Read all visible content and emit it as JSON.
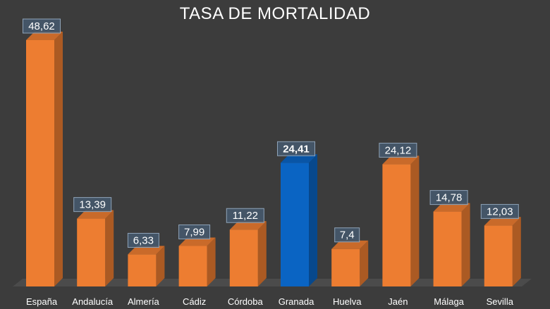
{
  "chart_data": {
    "type": "bar",
    "title": "TASA DE MORTALIDAD",
    "categories": [
      "España",
      "Andalucía",
      "Almería",
      "Cádiz",
      "Córdoba",
      "Granada",
      "Huelva",
      "Jaén",
      "Málaga",
      "Sevilla"
    ],
    "values": [
      48.62,
      13.39,
      6.33,
      7.99,
      11.22,
      24.41,
      7.4,
      24.12,
      14.78,
      12.03
    ],
    "data_labels": [
      "48,62",
      "13,39",
      "6,33",
      "7,99",
      "11,22",
      "24,41",
      "7,4",
      "24,12",
      "14,78",
      "12,03"
    ],
    "highlight_index": 5,
    "ylim": [
      0,
      48.62
    ],
    "grid": false,
    "legend": "none",
    "colors": {
      "bar": "#ED7D31",
      "highlight": "#0A64C3",
      "background": "#3C3C3C",
      "label_box": "#45596F"
    }
  }
}
